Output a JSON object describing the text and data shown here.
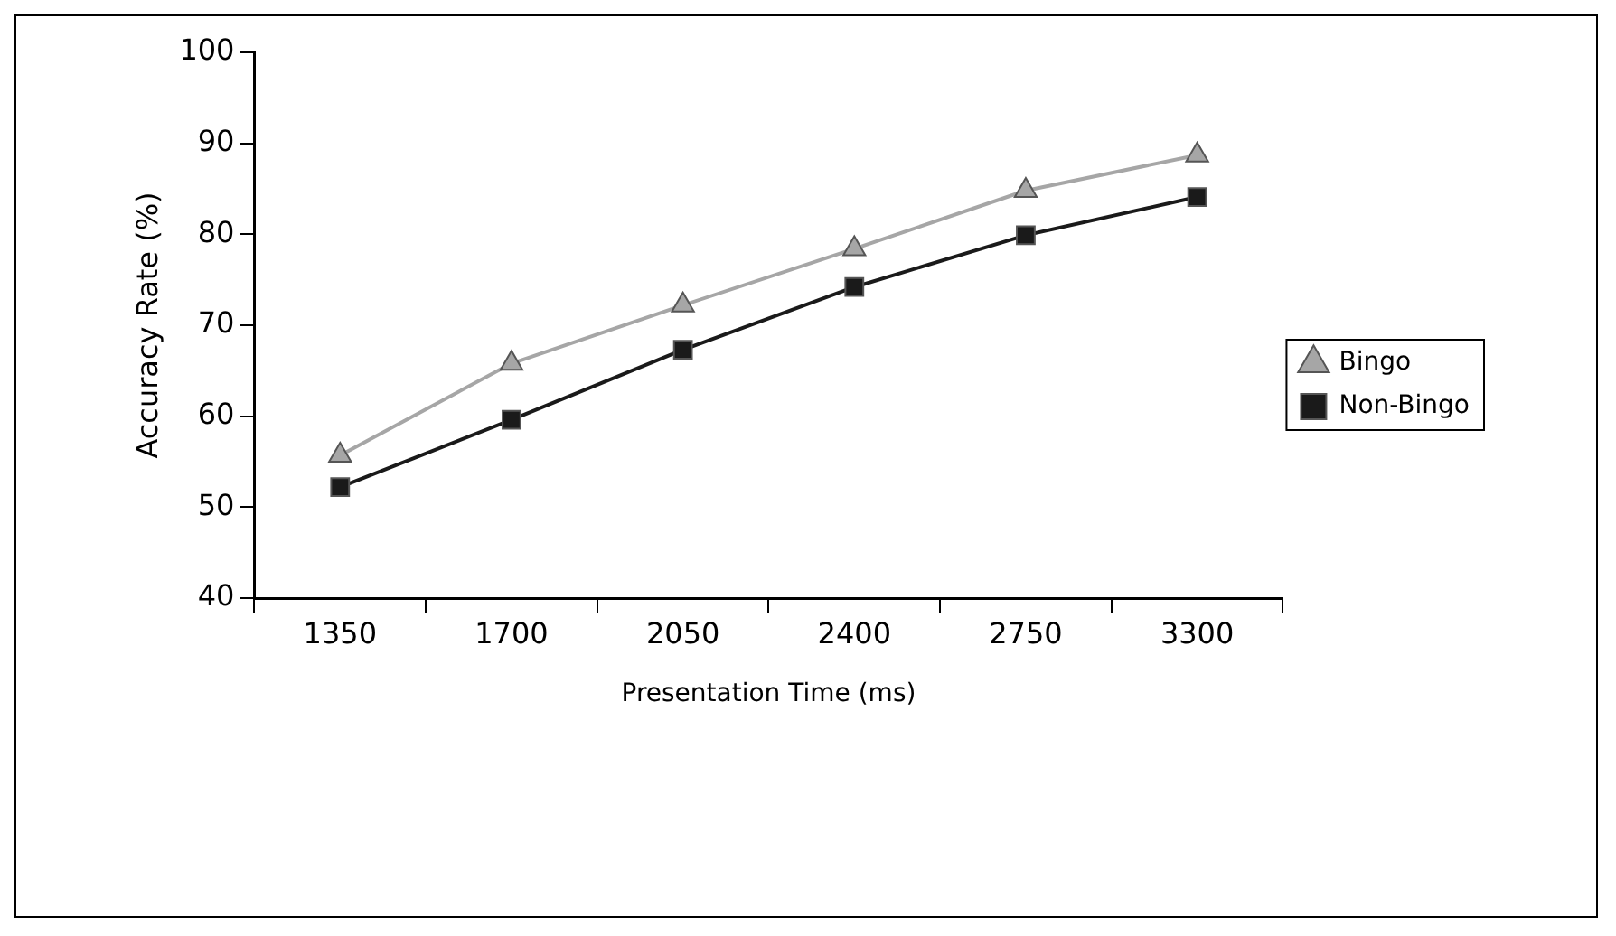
{
  "chart_data": {
    "type": "line",
    "xlabel": "Presentation Time (ms)",
    "ylabel": "Accuracy Rate (%)",
    "categories": [
      "1350",
      "1700",
      "2050",
      "2400",
      "2750",
      "3300"
    ],
    "series": [
      {
        "name": "Bingo",
        "color": "#a6a6a6",
        "marker": "triangle",
        "values": [
          55.7,
          65.8,
          72.2,
          78.4,
          84.8,
          88.7
        ]
      },
      {
        "name": "Non-Bingo",
        "color": "#1a1a1a",
        "marker": "square",
        "values": [
          52.2,
          59.6,
          67.3,
          74.2,
          79.9,
          84.1
        ]
      }
    ],
    "ylim": [
      40,
      100
    ],
    "yticks": [
      40,
      50,
      60,
      70,
      80,
      90,
      100
    ],
    "grid": false,
    "legend": "right"
  }
}
